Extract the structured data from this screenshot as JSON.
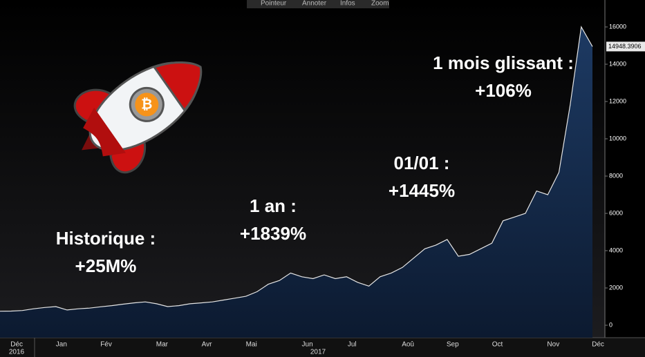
{
  "toolbar": [
    "Pointeur",
    "Annoter",
    "Infos",
    "Zoom"
  ],
  "chart_data": {
    "type": "area",
    "categories": [
      null,
      "Déc",
      null,
      null,
      null,
      "Jan",
      null,
      null,
      null,
      "Fév",
      null,
      null,
      null,
      null,
      "Mar",
      null,
      null,
      null,
      "Avr",
      null,
      null,
      null,
      "Mai",
      null,
      null,
      null,
      null,
      "Jun",
      null,
      null,
      null,
      "Jul",
      null,
      null,
      null,
      null,
      "Aoû",
      null,
      null,
      null,
      "Sep",
      null,
      null,
      null,
      "Oct",
      null,
      null,
      null,
      null,
      "Nov",
      null,
      null,
      null,
      "Déc"
    ],
    "year_labels": [
      "2016",
      "2017"
    ],
    "values": [
      750,
      760,
      790,
      880,
      950,
      1000,
      820,
      880,
      920,
      990,
      1050,
      1130,
      1200,
      1250,
      1150,
      1000,
      1050,
      1150,
      1200,
      1250,
      1350,
      1450,
      1550,
      1800,
      2200,
      2400,
      2800,
      2600,
      2500,
      2700,
      2500,
      2600,
      2300,
      2100,
      2600,
      2800,
      3100,
      3600,
      4100,
      4300,
      4600,
      3700,
      3800,
      4100,
      4400,
      5600,
      5800,
      6000,
      7200,
      7000,
      8200,
      11800,
      16000,
      14948.3906
    ],
    "color": "#e6e6e6",
    "ylim": [
      -667,
      17444
    ],
    "yticks": [
      0,
      2000,
      4000,
      6000,
      8000,
      10000,
      12000,
      14000,
      16000
    ],
    "annotations": [
      {
        "lines": [
          "Historique :",
          "+25M%"
        ]
      },
      {
        "lines": [
          "1 an :",
          "+1839%"
        ]
      },
      {
        "lines": [
          "01/01 :",
          "+1445%"
        ]
      },
      {
        "lines": [
          "1 mois glissant :",
          "+106%"
        ]
      }
    ]
  }
}
